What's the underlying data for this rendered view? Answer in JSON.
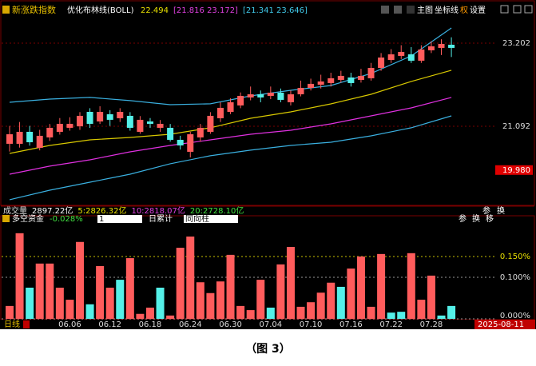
{
  "caption": "（图 3）",
  "chart_data": [
    {
      "type": "candlestick",
      "title": "新涨跌指数",
      "indicator": "优化布林线(BOLL)",
      "indicator_texts": [
        {
          "text": "22.494",
          "color": "#e8e000"
        },
        {
          "text": "[21.816 23.172]",
          "color": "#e040e0"
        },
        {
          "text": "[21.341 23.646]",
          "color": "#40c8e8"
        }
      ],
      "toolbar": [
        "主图",
        "坐标线",
        "权",
        "设置"
      ],
      "open": [
        20.646,
        20.646,
        20.95,
        20.544,
        20.808,
        20.95,
        21.052,
        21.092,
        21.457,
        21.214,
        21.397,
        21.295,
        21.356,
        20.95,
        21.214,
        21.052,
        21.052,
        20.747,
        20.443,
        20.808,
        20.95,
        21.295,
        21.457,
        21.62,
        21.823,
        21.903,
        21.863,
        21.944,
        21.701,
        21.903,
        22.066,
        22.147,
        22.188,
        22.269,
        22.33,
        22.269,
        22.31,
        22.573,
        22.776,
        22.878,
        22.918,
        22.756,
        23.02,
        23.081,
        23.162
      ],
      "close": [
        20.889,
        20.95,
        20.686,
        20.849,
        21.052,
        21.153,
        21.153,
        21.356,
        21.153,
        21.457,
        21.255,
        21.457,
        21.052,
        21.255,
        21.153,
        21.153,
        20.747,
        20.605,
        20.889,
        21.052,
        21.356,
        21.559,
        21.701,
        21.863,
        21.903,
        21.823,
        21.944,
        21.762,
        21.903,
        22.066,
        22.168,
        22.229,
        22.31,
        22.371,
        22.188,
        22.371,
        22.573,
        22.837,
        22.918,
        22.979,
        22.756,
        23.04,
        23.121,
        23.182,
        23.081
      ],
      "high": [
        21.1,
        21.2,
        21.1,
        21.0,
        21.15,
        21.3,
        21.32,
        21.45,
        21.55,
        21.6,
        21.5,
        21.55,
        21.45,
        21.35,
        21.3,
        21.25,
        21.15,
        20.85,
        20.95,
        21.15,
        21.45,
        21.7,
        21.8,
        21.95,
        22.1,
        22.0,
        22.1,
        22.05,
        22.0,
        22.25,
        22.3,
        22.4,
        22.45,
        22.5,
        22.45,
        22.55,
        22.7,
        22.95,
        23.05,
        23.15,
        23.1,
        23.15,
        23.25,
        23.3,
        23.35
      ],
      "low": [
        20.45,
        20.55,
        20.6,
        20.48,
        20.72,
        20.88,
        20.98,
        21.0,
        21.05,
        21.15,
        21.1,
        21.2,
        20.98,
        20.9,
        21.05,
        20.95,
        20.7,
        20.5,
        20.3,
        20.7,
        20.9,
        21.2,
        21.4,
        21.55,
        21.75,
        21.7,
        21.78,
        21.7,
        21.62,
        21.85,
        22.0,
        22.05,
        22.1,
        22.2,
        22.1,
        22.2,
        22.25,
        22.5,
        22.7,
        22.8,
        22.7,
        22.7,
        22.95,
        22.9,
        22.85
      ],
      "up_color": "#ff5c5c",
      "down_color": "#54f0e8",
      "boll": {
        "x": [
          0,
          4,
          8,
          12,
          16,
          20,
          24,
          28,
          32,
          36,
          40,
          44
        ],
        "series": [
          {
            "color": "#3ab0e0",
            "values": [
              21.701,
              21.782,
              21.823,
              21.742,
              21.64,
              21.661,
              21.863,
              22.005,
              22.127,
              22.432,
              22.878,
              23.588
            ]
          },
          {
            "color": "#d8c800",
            "values": [
              20.402,
              20.605,
              20.747,
              20.808,
              20.889,
              21.052,
              21.295,
              21.457,
              21.66,
              21.903,
              22.229,
              22.513
            ]
          },
          {
            "color": "#e030e0",
            "values": [
              19.875,
              20.078,
              20.24,
              20.443,
              20.605,
              20.747,
              20.889,
              20.991,
              21.153,
              21.356,
              21.559,
              21.823
            ]
          },
          {
            "color": "#3ab0e0",
            "values": [
              19.226,
              19.469,
              19.672,
              19.875,
              20.139,
              20.342,
              20.484,
              20.605,
              20.686,
              20.849,
              21.052,
              21.356
            ]
          }
        ]
      },
      "ylim": [
        19.103,
        23.851
      ],
      "yticks": [
        23.202,
        21.092
      ],
      "marker_tick": {
        "value": 19.98,
        "label": "19.980"
      },
      "marker_color": "#e00000",
      "grid": true
    },
    {
      "type": "bar",
      "volume_title": "成交量",
      "volume_texts": [
        "2897.22亿",
        "5:2826.32亿",
        "10:2818.07亿",
        "20:2728.10亿"
      ],
      "volume_colors": [
        "#ffffff",
        "#e8e000",
        "#e040e0",
        "#40e040"
      ],
      "title": "多空资金",
      "title_value": "-0.028%",
      "controls": [
        "1",
        "日累计",
        "同向柱"
      ],
      "toolbar_top": [
        "参",
        "换"
      ],
      "toolbar": [
        "参",
        "换",
        "移"
      ],
      "categories": [
        null,
        null,
        null,
        null,
        null,
        null,
        "06.06",
        null,
        null,
        null,
        "06.12",
        null,
        null,
        null,
        "06.18",
        null,
        null,
        null,
        "06.24",
        null,
        null,
        null,
        "06.30",
        null,
        null,
        null,
        "07.04",
        null,
        null,
        null,
        "07.10",
        null,
        null,
        null,
        "07.16",
        null,
        null,
        null,
        "07.22",
        null,
        null,
        null,
        "07.28",
        null,
        null
      ],
      "values": [
        0.031,
        0.206,
        0.075,
        0.133,
        0.133,
        0.075,
        0.046,
        0.185,
        0.035,
        0.127,
        0.075,
        0.094,
        0.146,
        0.012,
        0.027,
        0.075,
        0.008,
        0.171,
        0.198,
        0.088,
        0.062,
        0.09,
        0.154,
        0.031,
        0.021,
        0.094,
        0.027,
        0.131,
        0.173,
        0.029,
        0.04,
        0.063,
        0.087,
        0.077,
        0.121,
        0.15,
        0.029,
        0.156,
        0.015,
        0.017,
        0.158,
        0.046,
        0.104,
        0.008,
        0.031
      ],
      "colors": [
        "#ff5c5c",
        "#ff5c5c",
        "#54f0e8",
        "#ff5c5c",
        "#ff5c5c",
        "#ff5c5c",
        "#ff5c5c",
        "#ff5c5c",
        "#54f0e8",
        "#ff5c5c",
        "#ff5c5c",
        "#54f0e8",
        "#ff5c5c",
        "#ff5c5c",
        "#ff5c5c",
        "#54f0e8",
        "#ff5c5c",
        "#ff5c5c",
        "#ff5c5c",
        "#ff5c5c",
        "#ff5c5c",
        "#ff5c5c",
        "#ff5c5c",
        "#ff5c5c",
        "#ff5c5c",
        "#ff5c5c",
        "#54f0e8",
        "#ff5c5c",
        "#ff5c5c",
        "#ff5c5c",
        "#ff5c5c",
        "#ff5c5c",
        "#ff5c5c",
        "#54f0e8",
        "#ff5c5c",
        "#ff5c5c",
        "#ff5c5c",
        "#ff5c5c",
        "#54f0e8",
        "#54f0e8",
        "#ff5c5c",
        "#ff5c5c",
        "#ff5c5c",
        "#54f0e8",
        "#54f0e8"
      ],
      "ylim": [
        0,
        0.223
      ],
      "yticks": [
        {
          "value": 0.15,
          "label": "0.150%"
        },
        {
          "value": 0.1,
          "label": "0.100%"
        },
        {
          "value": 0,
          "label": "0.000%"
        }
      ],
      "grid": true,
      "period": "日线",
      "date_label": "2025-08-11"
    }
  ]
}
